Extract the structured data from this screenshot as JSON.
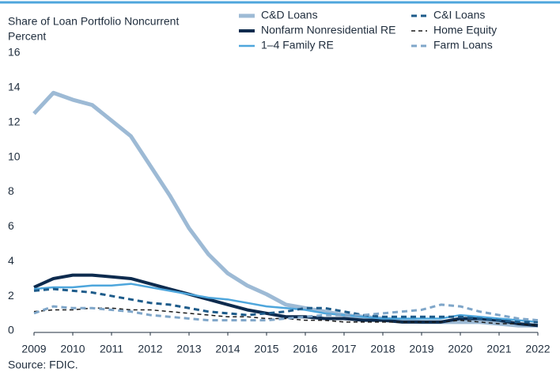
{
  "chart_data": {
    "type": "line",
    "title": "Share of Loan Portfolio Noncurrent",
    "y_label": "Percent",
    "source": "Source: FDIC.",
    "x": [
      2009,
      2009.5,
      2010,
      2010.5,
      2011,
      2011.5,
      2012,
      2012.5,
      2013,
      2013.5,
      2014,
      2014.5,
      2015,
      2015.5,
      2016,
      2016.5,
      2017,
      2017.5,
      2018,
      2018.5,
      2019,
      2019.5,
      2020,
      2020.5,
      2021,
      2021.5,
      2022
    ],
    "xlim": [
      2009,
      2022
    ],
    "xticks": [
      2009,
      2010,
      2011,
      2012,
      2013,
      2014,
      2015,
      2016,
      2017,
      2018,
      2019,
      2020,
      2021,
      2022
    ],
    "ylim": [
      0,
      16
    ],
    "yticks": [
      0,
      2,
      4,
      6,
      8,
      10,
      12,
      14,
      16
    ],
    "grid": false,
    "series": [
      {
        "name": "C&D Loans",
        "color": "#9dbad5",
        "dash": "solid",
        "width": 5,
        "values": [
          12.6,
          13.8,
          13.4,
          13.1,
          12.2,
          11.3,
          9.6,
          7.9,
          6.0,
          4.5,
          3.4,
          2.7,
          2.2,
          1.6,
          1.4,
          1.2,
          1.0,
          0.9,
          0.8,
          0.7,
          0.6,
          0.6,
          0.6,
          0.6,
          0.5,
          0.4,
          0.4
        ]
      },
      {
        "name": "Nonfarm Nonresidential RE",
        "color": "#0d2b4e",
        "dash": "solid",
        "width": 4,
        "values": [
          2.6,
          3.1,
          3.3,
          3.3,
          3.2,
          3.1,
          2.8,
          2.5,
          2.2,
          1.9,
          1.6,
          1.3,
          1.1,
          0.9,
          0.9,
          0.8,
          0.8,
          0.7,
          0.7,
          0.6,
          0.6,
          0.6,
          0.8,
          0.8,
          0.7,
          0.5,
          0.4
        ]
      },
      {
        "name": "1–4 Family RE",
        "color": "#4ea6dc",
        "dash": "solid",
        "width": 2.5,
        "values": [
          2.5,
          2.6,
          2.6,
          2.7,
          2.7,
          2.8,
          2.6,
          2.4,
          2.2,
          2.0,
          1.9,
          1.7,
          1.5,
          1.4,
          1.3,
          1.1,
          1.0,
          0.9,
          0.8,
          0.8,
          0.8,
          0.8,
          1.0,
          0.9,
          0.8,
          0.7,
          0.6
        ]
      },
      {
        "name": "C&I Loans",
        "color": "#1d5b8a",
        "dash": "dashed",
        "width": 3,
        "values": [
          2.4,
          2.5,
          2.4,
          2.3,
          2.1,
          1.9,
          1.7,
          1.6,
          1.4,
          1.2,
          1.1,
          1.0,
          1.1,
          1.2,
          1.4,
          1.4,
          1.2,
          1.0,
          0.9,
          0.9,
          0.9,
          0.9,
          0.9,
          0.8,
          0.7,
          0.6,
          0.6
        ]
      },
      {
        "name": "Home Equity",
        "color": "#1a1a1a",
        "dash": "dashed",
        "width": 1.5,
        "values": [
          1.2,
          1.3,
          1.3,
          1.4,
          1.4,
          1.3,
          1.3,
          1.2,
          1.1,
          1.0,
          0.9,
          0.9,
          0.8,
          0.8,
          0.7,
          0.7,
          0.6,
          0.6,
          0.6,
          0.6,
          0.6,
          0.6,
          0.7,
          0.6,
          0.5,
          0.5,
          0.4
        ]
      },
      {
        "name": "Farm Loans",
        "color": "#7fa6c9",
        "dash": "dashed",
        "width": 3,
        "values": [
          1.1,
          1.5,
          1.4,
          1.4,
          1.3,
          1.2,
          1.0,
          0.9,
          0.8,
          0.7,
          0.7,
          0.7,
          0.7,
          0.8,
          0.9,
          1.0,
          1.0,
          1.0,
          1.1,
          1.2,
          1.3,
          1.6,
          1.5,
          1.2,
          1.0,
          0.8,
          0.7
        ]
      }
    ]
  }
}
